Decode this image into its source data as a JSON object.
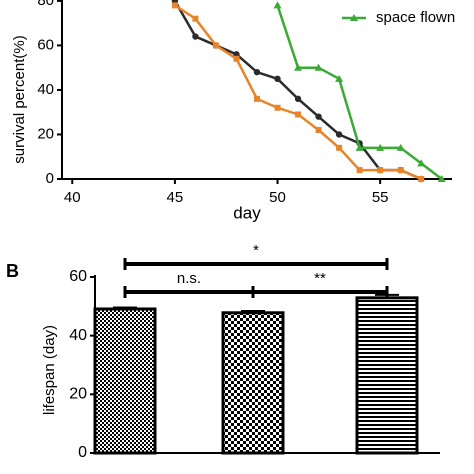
{
  "chart_data": [
    {
      "type": "line",
      "x_label": "day",
      "y_label": "survival percent(%)",
      "xlim": [
        39.5,
        58.5
      ],
      "xticks": [
        40,
        45,
        50,
        55
      ],
      "ylim": [
        0,
        84
      ],
      "yticks": [
        0,
        20,
        40,
        60,
        80
      ],
      "series": [
        {
          "color": "#2b2b2b",
          "marker": "circle",
          "x": [
            45,
            46,
            47,
            48,
            49,
            50,
            51,
            52,
            53,
            54,
            55,
            56,
            57
          ],
          "values": [
            80,
            64,
            60,
            56,
            48,
            45,
            36,
            28,
            20,
            16,
            4,
            4,
            0
          ]
        },
        {
          "color": "#e8842a",
          "marker": "square",
          "x": [
            45,
            46,
            47,
            48,
            49,
            50,
            51,
            52,
            53,
            54,
            55,
            56,
            57
          ],
          "values": [
            78,
            72,
            60,
            54,
            36,
            32,
            29,
            22,
            14,
            4,
            4,
            4,
            0
          ]
        },
        {
          "name": "space flown",
          "color": "#3aaa35",
          "marker": "triangle",
          "x": [
            50,
            51,
            52,
            53,
            54,
            55,
            56,
            57,
            58
          ],
          "values": [
            78,
            50,
            50,
            45,
            14,
            14,
            14,
            7,
            0
          ]
        }
      ]
    },
    {
      "type": "bar",
      "panel_label": "B",
      "y_label": "lifespan (day)",
      "categories": [
        null,
        null,
        null
      ],
      "values": [
        49.1,
        47.8,
        52.9
      ],
      "errors": [
        0.5,
        0.6,
        1.0
      ],
      "patterns": [
        "fine-check",
        "check",
        "stripes"
      ],
      "ylim": [
        0,
        60
      ],
      "yticks": [
        0,
        20,
        40,
        60
      ],
      "significance": [
        {
          "label": "*",
          "from": 0,
          "to": 2
        },
        {
          "label": "n.s.",
          "from": 0,
          "to": 1
        },
        {
          "label": "**",
          "from": 1,
          "to": 2
        }
      ]
    }
  ]
}
